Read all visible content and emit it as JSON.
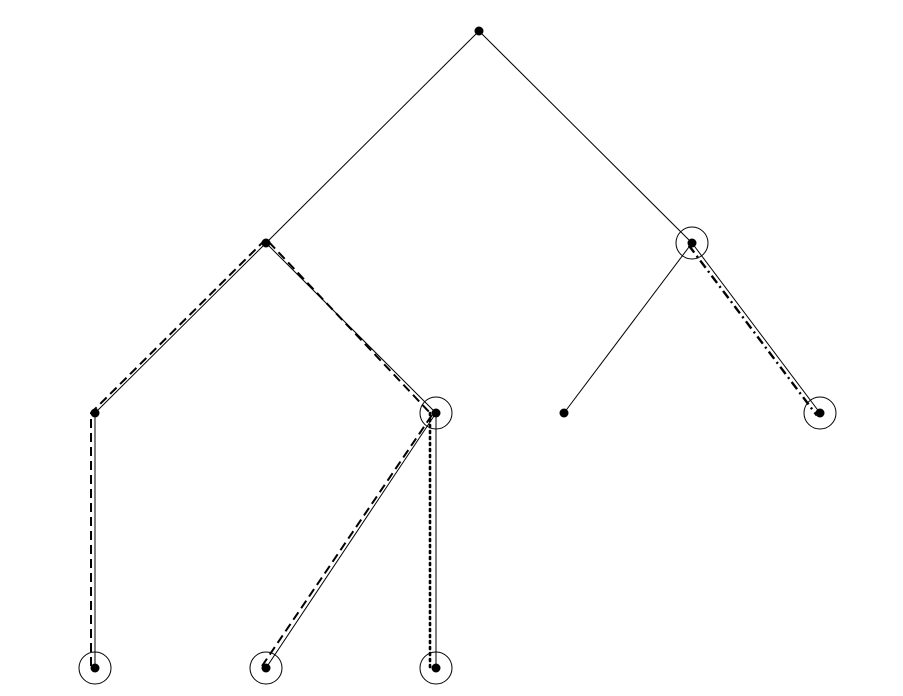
{
  "diagram": {
    "type": "tree",
    "colors": {
      "background": "#ffffff",
      "stroke": "#000000",
      "node": "#000000"
    },
    "nodes": [
      {
        "id": "root",
        "marked": false
      },
      {
        "id": "l1a",
        "marked": false
      },
      {
        "id": "l1b",
        "marked": true
      },
      {
        "id": "l2a",
        "marked": false
      },
      {
        "id": "l2b",
        "marked": true
      },
      {
        "id": "l2c",
        "marked": false
      },
      {
        "id": "l2d",
        "marked": true
      },
      {
        "id": "l3a",
        "marked": true
      },
      {
        "id": "l3b",
        "marked": true
      },
      {
        "id": "l3c",
        "marked": true
      }
    ],
    "edges": [
      {
        "from": "root",
        "to": "l1a"
      },
      {
        "from": "root",
        "to": "l1b"
      },
      {
        "from": "l1a",
        "to": "l2a"
      },
      {
        "from": "l1a",
        "to": "l2b"
      },
      {
        "from": "l1b",
        "to": "l2c"
      },
      {
        "from": "l1b",
        "to": "l2d"
      },
      {
        "from": "l2a",
        "to": "l3a"
      },
      {
        "from": "l2b",
        "to": "l3b"
      },
      {
        "from": "l2b",
        "to": "l3c"
      }
    ],
    "paths": [
      {
        "style": "dashed",
        "nodes": [
          "l3a",
          "l2a",
          "l1a",
          "l2b",
          "l3b"
        ]
      },
      {
        "style": "dotted",
        "nodes": [
          "l2b",
          "l3c"
        ]
      },
      {
        "style": "dash-dot",
        "nodes": [
          "l1b",
          "l2d"
        ]
      }
    ]
  }
}
